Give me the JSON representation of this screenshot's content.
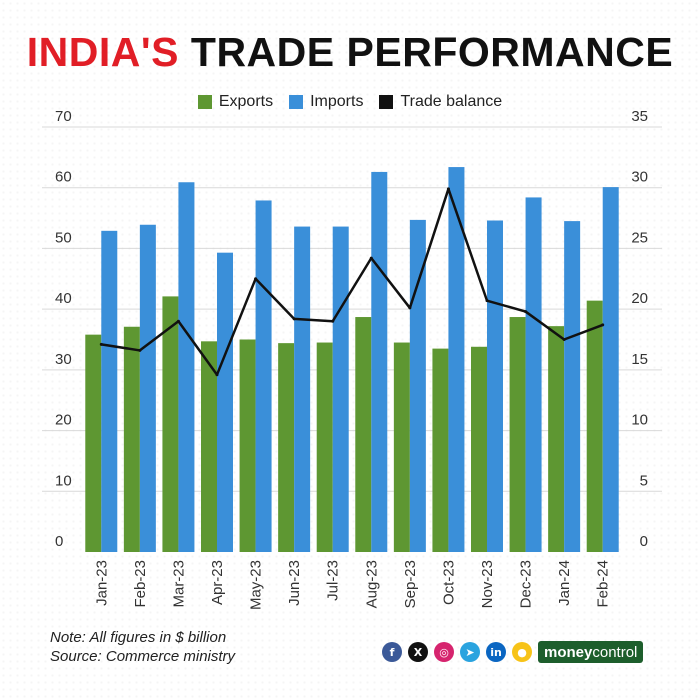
{
  "title": {
    "part1": "INDIA'S",
    "part2": "TRADE PERFORMANCE"
  },
  "colors": {
    "exports": "#5e9732",
    "imports": "#3a8fd9",
    "balance": "#111111",
    "title_red": "#e11e26"
  },
  "chart_data": {
    "type": "bar",
    "title": "INDIA'S TRADE PERFORMANCE",
    "categories": [
      "Jan-23",
      "Feb-23",
      "Mar-23",
      "Apr-23",
      "May-23",
      "Jun-23",
      "Jul-23",
      "Aug-23",
      "Sep-23",
      "Oct-23",
      "Nov-23",
      "Dec-23",
      "Jan-24",
      "Feb-24"
    ],
    "series": [
      {
        "name": "Exports",
        "type": "bar",
        "axis": "left",
        "values": [
          35.8,
          37.1,
          42.1,
          34.7,
          35.0,
          34.4,
          34.5,
          38.7,
          34.5,
          33.5,
          33.8,
          38.7,
          37.2,
          41.4
        ]
      },
      {
        "name": "Imports",
        "type": "bar",
        "axis": "left",
        "values": [
          52.9,
          53.9,
          60.9,
          49.3,
          57.9,
          53.6,
          53.6,
          62.6,
          54.7,
          63.4,
          54.6,
          58.4,
          54.5,
          60.1
        ]
      },
      {
        "name": "Trade balance",
        "type": "line",
        "axis": "right",
        "values": [
          17.1,
          16.6,
          19.0,
          14.6,
          22.5,
          19.2,
          19.0,
          24.2,
          20.1,
          29.9,
          20.7,
          19.8,
          17.5,
          18.7
        ]
      }
    ],
    "ylim_left": [
      0,
      70
    ],
    "ylim_right": [
      0,
      35
    ],
    "yticks_left": [
      0,
      10,
      20,
      30,
      40,
      50,
      60,
      70
    ],
    "yticks_right": [
      0,
      5,
      10,
      15,
      20,
      25,
      30,
      35
    ],
    "grid": true,
    "legend_position": "top-center"
  },
  "footer": {
    "note": "Note: All figures in $ billion",
    "source": "Source: Commerce ministry",
    "brand_a": "money",
    "brand_b": "control"
  },
  "social_icons": [
    {
      "name": "facebook-icon",
      "glyph": "f",
      "color": "#3b5998"
    },
    {
      "name": "x-icon",
      "glyph": "X",
      "color": "#111111"
    },
    {
      "name": "instagram-icon",
      "glyph": "◎",
      "color": "#d6246e"
    },
    {
      "name": "telegram-icon",
      "glyph": "➤",
      "color": "#2aa3df"
    },
    {
      "name": "linkedin-icon",
      "glyph": "in",
      "color": "#0a66c2"
    },
    {
      "name": "koo-icon",
      "glyph": "●",
      "color": "#f7c318"
    }
  ]
}
